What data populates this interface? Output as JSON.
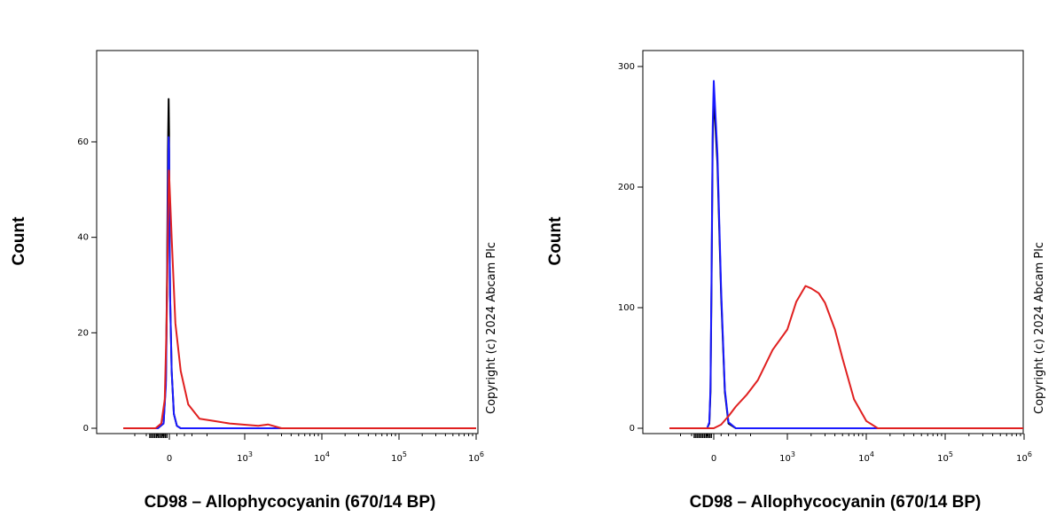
{
  "figure": {
    "copyright": "Copyright (c) 2024 Abcam Plc"
  },
  "colors": {
    "black": "#000000",
    "blue": "#1a1aff",
    "red": "#e02020"
  },
  "chart_data": [
    {
      "type": "line",
      "title": "",
      "xlabel": "CD98 – Allophycocyanin (670/14 BP)",
      "ylabel": "Count",
      "xscale": "biexponential",
      "yticks": [
        0,
        20,
        40,
        60
      ],
      "ytick_labels": [
        "0",
        "20",
        "40",
        "60"
      ],
      "ylim": [
        0,
        78
      ],
      "xticks": [
        0,
        1000,
        10000,
        100000,
        1000000
      ],
      "xtick_labels": [
        {
          "base": "0",
          "exp": ""
        },
        {
          "base": "10",
          "exp": "3"
        },
        {
          "base": "10",
          "exp": "4"
        },
        {
          "base": "10",
          "exp": "5"
        },
        {
          "base": "10",
          "exp": "6"
        }
      ],
      "xlim": [
        -2000,
        1000000
      ],
      "grid": false,
      "series": [
        {
          "color": "#000000",
          "x": [
            -2000,
            -500,
            -250,
            -150,
            -100,
            -60,
            -30,
            -10,
            0,
            10,
            30,
            60,
            100,
            150,
            250,
            1000000
          ],
          "y": [
            0,
            0,
            1,
            10,
            32,
            58,
            69,
            62,
            45,
            28,
            12,
            3,
            0.5,
            0,
            0,
            0
          ]
        },
        {
          "color": "#1a1aff",
          "x": [
            -2000,
            -500,
            -250,
            -150,
            -100,
            -60,
            -30,
            -10,
            0,
            10,
            30,
            60,
            100,
            150,
            250,
            1000000
          ],
          "y": [
            0,
            0,
            1,
            9,
            28,
            50,
            61,
            58,
            44,
            28,
            12,
            3,
            0.5,
            0,
            0,
            0
          ]
        },
        {
          "color": "#e02020",
          "x": [
            -2000,
            -600,
            -350,
            -200,
            -120,
            -60,
            -20,
            0,
            30,
            80,
            150,
            250,
            400,
            600,
            800,
            1500,
            2000,
            3000,
            1000000
          ],
          "y": [
            0,
            0,
            1,
            6,
            22,
            42,
            54,
            52,
            40,
            22,
            12,
            5,
            2,
            1.5,
            1,
            0.5,
            0.8,
            0,
            0
          ]
        }
      ]
    },
    {
      "type": "line",
      "title": "",
      "xlabel": "CD98 – Allophycocyanin (670/14 BP)",
      "ylabel": "Count",
      "xscale": "biexponential",
      "yticks": [
        0,
        100,
        200,
        300
      ],
      "ytick_labels": [
        "0",
        "100",
        "200",
        "300"
      ],
      "ylim": [
        0,
        311
      ],
      "xticks": [
        0,
        1000,
        10000,
        100000,
        1000000
      ],
      "xtick_labels": [
        {
          "base": "0",
          "exp": ""
        },
        {
          "base": "10",
          "exp": "3"
        },
        {
          "base": "10",
          "exp": "4"
        },
        {
          "base": "10",
          "exp": "5"
        },
        {
          "base": "10",
          "exp": "6"
        }
      ],
      "xlim": [
        -2000,
        1000000
      ],
      "grid": false,
      "series": [
        {
          "color": "#000000",
          "x": [
            -2000,
            -300,
            -200,
            -150,
            -100,
            -50,
            0,
            50,
            100,
            150,
            200,
            300,
            1000000
          ],
          "y": [
            0,
            0,
            4,
            30,
            120,
            240,
            276,
            220,
            110,
            30,
            4,
            0,
            0
          ]
        },
        {
          "color": "#1a1aff",
          "x": [
            -2000,
            -300,
            -200,
            -150,
            -100,
            -50,
            0,
            50,
            100,
            150,
            200,
            300,
            1000000
          ],
          "y": [
            0,
            0,
            5,
            34,
            128,
            250,
            288,
            228,
            115,
            32,
            5,
            0,
            0
          ]
        },
        {
          "color": "#e02020",
          "x": [
            -2000,
            0,
            100,
            200,
            300,
            450,
            600,
            800,
            1000,
            1300,
            1700,
            2000,
            2500,
            3000,
            4000,
            5000,
            7000,
            10000,
            14000,
            1000000
          ],
          "y": [
            0,
            0,
            3,
            10,
            18,
            28,
            40,
            65,
            82,
            105,
            118,
            116,
            112,
            104,
            82,
            58,
            24,
            6,
            0,
            0
          ]
        }
      ]
    }
  ]
}
